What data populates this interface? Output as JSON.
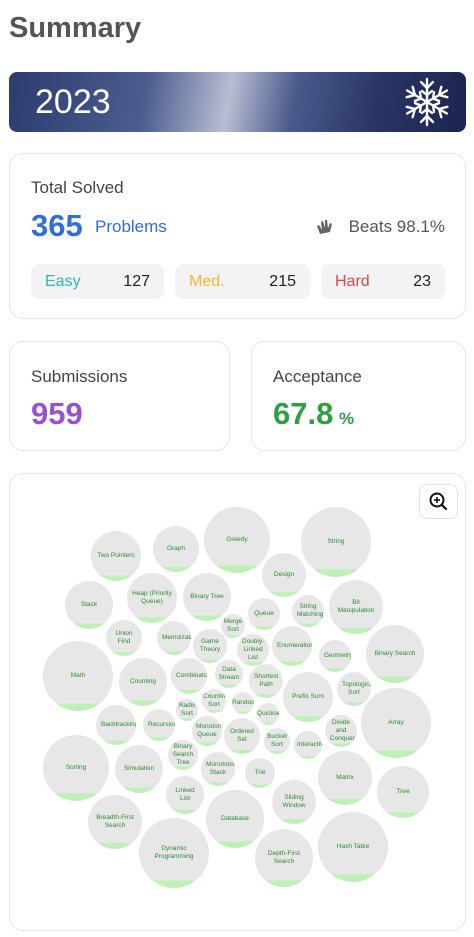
{
  "header": {
    "title": "Summary"
  },
  "banner": {
    "year": "2023"
  },
  "solved": {
    "label": "Total Solved",
    "count": 365,
    "unit": "Problems",
    "beats": "Beats 98.1%",
    "levels": [
      {
        "name": "Easy",
        "count": 127
      },
      {
        "name": "Med.",
        "count": 215
      },
      {
        "name": "Hard",
        "count": 23
      }
    ]
  },
  "submissions": {
    "label": "Submissions",
    "count": 959
  },
  "acceptance": {
    "label": "Acceptance",
    "value": "67.8",
    "unit": "%"
  },
  "topics": [
    "Two Pointers",
    "Graph",
    "Greedy",
    "String",
    "Design",
    "Stack",
    "Heap (Priority Queue)",
    "Binary Tree",
    "Bit Manipulation",
    "String Matching",
    "Queue",
    "Merge Sort",
    "Union Find",
    "Memoization",
    "Game Theory",
    "Doubly-Linked List",
    "Enumeration",
    "Geometry",
    "Binary Search",
    "Math",
    "Counting",
    "Combinatorics",
    "Data Stream",
    "Shortest Path",
    "Topological Sort",
    "Prefix Sum",
    "Radix Sort",
    "Counting Sort",
    "Randomized",
    "Array",
    "Backtracking",
    "Recursion",
    "Monotonic Queue",
    "Quickselect",
    "Ordered Set",
    "Bucket Sort",
    "Interactive",
    "Divide and Conquer",
    "Sorting",
    "Simulation",
    "Binary Search Tree",
    "Monotonic Stack",
    "Trie",
    "Matrix",
    "Tree",
    "Linked List",
    "Breadth-First Search",
    "Database",
    "Sliding Window",
    "Dynamic Programming",
    "Depth-First Search",
    "Hash Table"
  ]
}
